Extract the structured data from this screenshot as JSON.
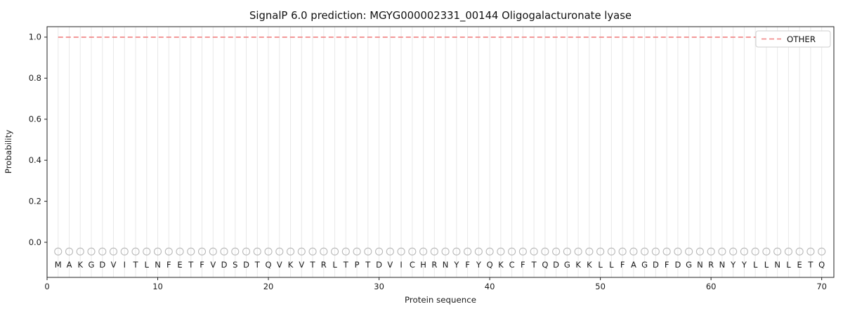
{
  "chart_data": {
    "type": "line",
    "title": "SignalP 6.0 prediction: MGYG000002331_00144 Oligogalacturonate lyase",
    "xlabel": "Protein sequence",
    "ylabel": "Probability",
    "xlim": [
      0,
      71.1
    ],
    "ylim": [
      -0.171,
      1.051
    ],
    "xticks": [
      0,
      10,
      20,
      30,
      40,
      50,
      60,
      70
    ],
    "yticks": [
      0.0,
      0.2,
      0.4,
      0.6,
      0.8,
      1.0
    ],
    "grid": {
      "vertical_per_residue": true,
      "horizontal": false
    },
    "legend": {
      "position": "upper right",
      "entries": [
        {
          "label": "OTHER",
          "color": "#f08080",
          "linestyle": "dashed"
        }
      ]
    },
    "series": [
      {
        "name": "OTHER",
        "linestyle": "dashed",
        "color": "#f08080",
        "x_start": 1,
        "x_end": 70,
        "constant_value": 1.0,
        "note": "OTHER probability is flat at 1.0 across all residues 1-70"
      }
    ],
    "sequence": "MAKGDVITLNFETFVDSDTQVKVTRLTPTDVICHRNYFYQKCFTQDGKKLLFAGDFDGNRNYYLLNLETQ",
    "sequence_length": 70,
    "marker_y": -0.045,
    "letter_baseline_y": -0.123,
    "colors": {
      "other_line": "#f08080",
      "residue_marker": "#b9b9b9",
      "gridline": "#e8e8e8",
      "spine": "#222222"
    }
  }
}
